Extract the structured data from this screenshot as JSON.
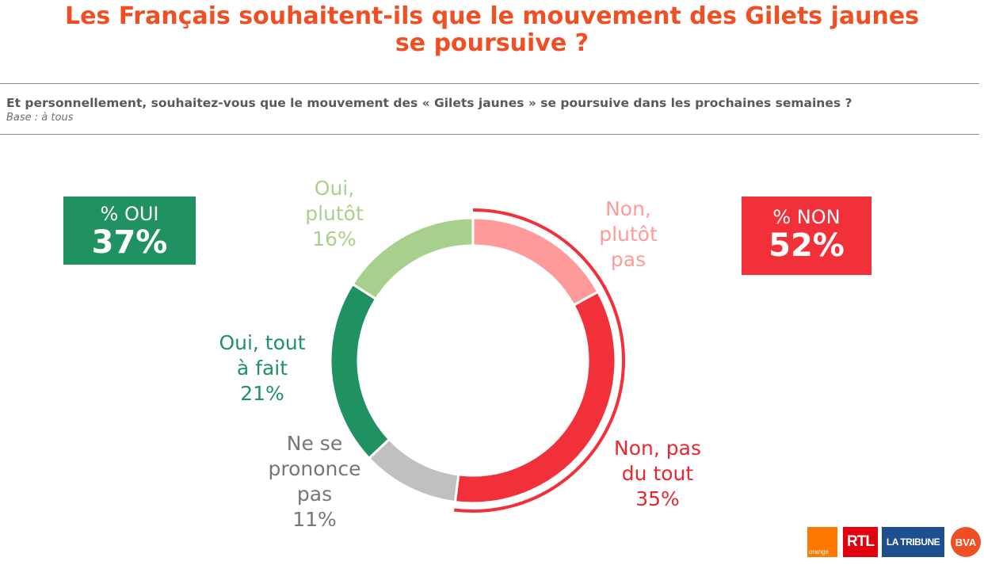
{
  "title": {
    "line1": "Les Français souhaitent-ils que le mouvement des Gilets jaunes",
    "line2": "se poursuive ?"
  },
  "question": "Et personnellement, souhaitez-vous que le mouvement des « Gilets jaunes » se poursuive dans les prochaines semaines ?",
  "base": "Base : à tous",
  "summary": {
    "oui": {
      "label": "% OUI",
      "value": "37%",
      "color": "#209160"
    },
    "non": {
      "label": "% NON",
      "value": "52%",
      "color": "#f2303a"
    }
  },
  "chart_data": {
    "type": "pie",
    "variant": "donut",
    "unit": "%",
    "slices": [
      {
        "label_lines": [
          "Non,",
          "plutôt",
          "pas"
        ],
        "value": 17,
        "display": "",
        "color": "#ff9a9a",
        "text_color": "#ff9a9a"
      },
      {
        "label_lines": [
          "Non, pas",
          "du tout"
        ],
        "value": 35,
        "display": "35%",
        "color": "#f2303a",
        "text_color": "#e8282f"
      },
      {
        "label_lines": [
          "Ne se",
          "prononce",
          "pas"
        ],
        "value": 11,
        "display": "11%",
        "color": "#c0c0c0",
        "text_color": "#767676"
      },
      {
        "label_lines": [
          "Oui, tout",
          "à fait"
        ],
        "value": 21,
        "display": "21%",
        "color": "#209160",
        "text_color": "#209160"
      },
      {
        "label_lines": [
          "Oui,",
          "plutôt"
        ],
        "value": 16,
        "display": "16%",
        "color": "#a8d08d",
        "text_color": "#a8d08d"
      }
    ],
    "grouping_arc": {
      "from_slice": 0,
      "to_slice": 1,
      "color": "#f2303a"
    }
  },
  "logos": [
    {
      "name": "orange",
      "text": "orange",
      "color": "#ff7900"
    },
    {
      "name": "rtl",
      "text": "RTL",
      "color": "#e3000f"
    },
    {
      "name": "la-tribune",
      "text": "LA TRIBUNE",
      "color": "#1d4f91"
    },
    {
      "name": "bva",
      "text": "BVA",
      "color": "#f04e23"
    }
  ]
}
